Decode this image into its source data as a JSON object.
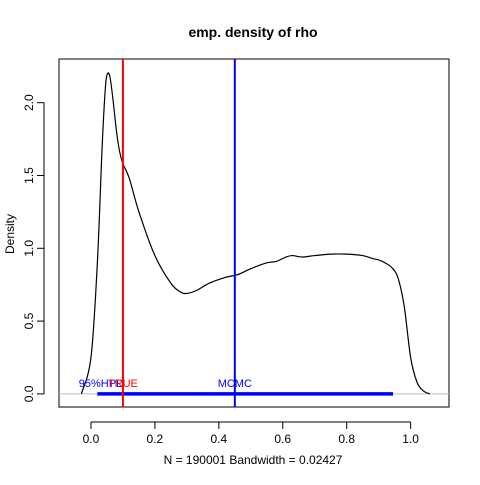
{
  "chart_data": {
    "type": "line",
    "title": "emp. density of rho",
    "xlabel": "N = 190001   Bandwidth = 0.02427",
    "ylabel": "Density",
    "xlim": [
      -0.1,
      1.12
    ],
    "ylim": [
      -0.09,
      2.3
    ],
    "xticks": [
      0.0,
      0.2,
      0.4,
      0.6,
      0.8,
      1.0
    ],
    "xtick_labels": [
      "0.0",
      "0.2",
      "0.4",
      "0.6",
      "0.8",
      "1.0"
    ],
    "yticks": [
      0.0,
      0.5,
      1.0,
      1.5,
      2.0
    ],
    "ytick_labels": [
      "0.0",
      "0.5",
      "1.0",
      "1.5",
      "2.0"
    ],
    "grid": false,
    "series": [
      {
        "color": "#000000",
        "x": [
          -0.03,
          0.0,
          0.02,
          0.035,
          0.045,
          0.052,
          0.06,
          0.07,
          0.08,
          0.09,
          0.1,
          0.12,
          0.15,
          0.2,
          0.25,
          0.28,
          0.3,
          0.33,
          0.37,
          0.42,
          0.46,
          0.5,
          0.55,
          0.58,
          0.61,
          0.63,
          0.66,
          0.7,
          0.75,
          0.8,
          0.85,
          0.88,
          0.9,
          0.92,
          0.94,
          0.96,
          0.98,
          1.0,
          1.02,
          1.04,
          1.06
        ],
        "y": [
          0.0,
          0.25,
          0.9,
          1.7,
          2.1,
          2.2,
          2.17,
          2.0,
          1.8,
          1.66,
          1.58,
          1.48,
          1.25,
          0.95,
          0.76,
          0.7,
          0.69,
          0.71,
          0.76,
          0.8,
          0.82,
          0.86,
          0.9,
          0.91,
          0.94,
          0.95,
          0.94,
          0.95,
          0.96,
          0.96,
          0.95,
          0.93,
          0.92,
          0.9,
          0.87,
          0.8,
          0.6,
          0.25,
          0.08,
          0.02,
          0.0
        ]
      }
    ],
    "baseline": {
      "y": 0.0,
      "color": "#bebebe"
    },
    "vlines": [
      {
        "x": 0.1,
        "color": "#ff0000",
        "label": "TRUE"
      },
      {
        "x": 0.45,
        "color": "#0000ff",
        "label": "MCMC"
      }
    ],
    "hpd_interval": {
      "from": 0.02,
      "to": 0.945,
      "y": 0.0,
      "color": "#0000ff",
      "label": "95%HPD"
    }
  }
}
